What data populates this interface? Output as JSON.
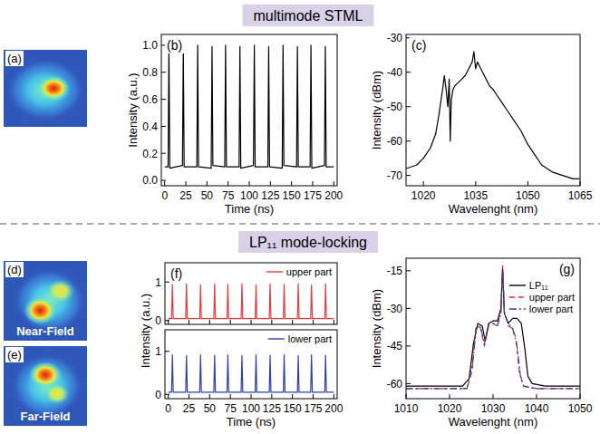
{
  "headers": [
    "multimode STML",
    "LP₁₁ mode-locking"
  ],
  "images": [
    {
      "label": "(a)"
    },
    {
      "label": "(d)",
      "caption": "Near-Field"
    },
    {
      "label": "(e)",
      "caption": "Far-Field"
    }
  ],
  "chart_data": [
    {
      "type": "line",
      "annotation": "(b)",
      "x_label": "Time (ns)",
      "y_label": "Intensity (a.u.)",
      "xlim": [
        -4,
        204
      ],
      "xticks": [
        0,
        25,
        50,
        75,
        100,
        125,
        150,
        175,
        200
      ],
      "ylim": [
        -0.04,
        1.08
      ],
      "yticks": [
        {
          "value": 0,
          "label": "0.0"
        },
        {
          "value": 0.2,
          "label": "0.2"
        },
        {
          "value": 0.4,
          "label": "0.4"
        },
        {
          "value": 0.6,
          "label": "0.6"
        },
        {
          "value": 0.8,
          "label": "0.8"
        },
        {
          "value": 1,
          "label": "1.0"
        }
      ],
      "series": [
        {
          "color": "#000000",
          "line_style": "solid",
          "x": [
            0,
            4,
            5,
            6,
            21,
            22,
            23,
            38,
            39,
            40,
            55,
            56,
            57,
            71,
            72,
            73,
            88,
            89,
            90,
            105,
            106,
            107,
            122,
            123,
            124,
            139,
            140,
            141,
            156,
            157,
            158,
            172,
            173,
            174,
            189,
            190,
            191,
            200
          ],
          "values": [
            0.1,
            0.1,
            1.0,
            0.09,
            0.11,
            0.99,
            0.1,
            0.1,
            1.0,
            0.1,
            0.09,
            0.99,
            0.11,
            0.1,
            1.0,
            0.1,
            0.1,
            0.99,
            0.09,
            0.11,
            1.0,
            0.1,
            0.1,
            0.99,
            0.1,
            0.09,
            1.0,
            0.11,
            0.1,
            0.99,
            0.1,
            0.1,
            1.0,
            0.09,
            0.11,
            0.99,
            0.1,
            0.1
          ]
        }
      ]
    },
    {
      "type": "line",
      "annotation": "(c)",
      "x_label": "Wavelenght (nm)",
      "y_label": "Intensity (dBm)",
      "xlim": [
        1015,
        1065
      ],
      "xticks": [
        1020,
        1035,
        1050,
        1065
      ],
      "ylim": [
        -73,
        -29
      ],
      "yticks": [
        -70,
        -60,
        -50,
        -40,
        -30
      ],
      "series": [
        {
          "color": "#000000",
          "line_style": "solid",
          "x": [
            1015,
            1018,
            1020,
            1022,
            1023.5,
            1024.5,
            1025.5,
            1026,
            1026.5,
            1027,
            1027.4,
            1027.7,
            1028,
            1028.5,
            1029,
            1030,
            1031,
            1032,
            1033,
            1034,
            1034.5,
            1035,
            1035.5,
            1036,
            1037,
            1038,
            1039,
            1040,
            1042,
            1044,
            1046,
            1048,
            1050,
            1052,
            1054,
            1057,
            1060,
            1063,
            1065
          ],
          "values": [
            -68,
            -67,
            -65,
            -62,
            -58,
            -52,
            -45,
            -41,
            -45,
            -50,
            -42,
            -60,
            -48,
            -45,
            -44,
            -43,
            -42,
            -41,
            -39,
            -37,
            -34,
            -39,
            -37,
            -38,
            -40,
            -42,
            -44,
            -45,
            -48,
            -51,
            -54,
            -57,
            -61,
            -64,
            -67,
            -69,
            -70,
            -71,
            -71
          ]
        }
      ]
    },
    {
      "type": "line",
      "annotation": "(f)",
      "tick_labels": "y",
      "legend": "upper right",
      "xlim": [
        -4,
        204
      ],
      "xticks": [
        0,
        25,
        50,
        75,
        100,
        125,
        150,
        175,
        200
      ],
      "ylim": [
        -0.1,
        1.5
      ],
      "yticks": [
        0,
        1
      ],
      "series": [
        {
          "name": "upper part",
          "color": "#e8393b",
          "line_style": "solid",
          "x": [
            0,
            4,
            5,
            6,
            21,
            22,
            23,
            38,
            39,
            40,
            55,
            56,
            57,
            71,
            72,
            73,
            88,
            89,
            90,
            105,
            106,
            107,
            122,
            123,
            124,
            139,
            140,
            141,
            156,
            157,
            158,
            172,
            173,
            174,
            189,
            190,
            191,
            200
          ],
          "values": [
            0.05,
            0.05,
            0.94,
            0.05,
            0.05,
            0.95,
            0.05,
            0.05,
            0.93,
            0.05,
            0.05,
            0.95,
            0.05,
            0.05,
            0.94,
            0.05,
            0.05,
            0.95,
            0.05,
            0.05,
            0.93,
            0.05,
            0.05,
            0.95,
            0.05,
            0.05,
            0.94,
            0.05,
            0.05,
            0.95,
            0.05,
            0.05,
            0.93,
            0.05,
            0.05,
            0.95,
            0.05,
            0.05
          ]
        }
      ]
    },
    {
      "type": "line",
      "x_label": "Time (ns)",
      "y_label": "Intensity (a.u.)",
      "legend": "upper right",
      "xlim": [
        -4,
        204
      ],
      "xticks": [
        0,
        25,
        50,
        75,
        100,
        125,
        150,
        175,
        200
      ],
      "ylim": [
        -0.1,
        1.5
      ],
      "yticks": [
        0,
        1
      ],
      "series": [
        {
          "name": "lower part",
          "color": "#2f3fa8",
          "line_style": "solid",
          "x": [
            0,
            4,
            5,
            6,
            21,
            22,
            23,
            38,
            39,
            40,
            55,
            56,
            57,
            71,
            72,
            73,
            88,
            89,
            90,
            105,
            106,
            107,
            122,
            123,
            124,
            139,
            140,
            141,
            156,
            157,
            158,
            172,
            173,
            174,
            189,
            190,
            191,
            200
          ],
          "values": [
            0.05,
            0.05,
            0.92,
            0.05,
            0.05,
            0.9,
            0.05,
            0.05,
            0.92,
            0.05,
            0.05,
            0.91,
            0.05,
            0.05,
            0.92,
            0.05,
            0.05,
            0.9,
            0.05,
            0.05,
            0.92,
            0.05,
            0.05,
            0.91,
            0.05,
            0.05,
            0.92,
            0.05,
            0.05,
            0.9,
            0.05,
            0.05,
            0.92,
            0.05,
            0.05,
            0.91,
            0.05,
            0.05
          ]
        }
      ]
    },
    {
      "type": "line",
      "annotation": "(g)",
      "x_label": "Wavelenght (nm)",
      "y_label": "Intensity (dBm)",
      "legend": "upper right",
      "xlim": [
        1010,
        1050
      ],
      "xticks": [
        1010,
        1020,
        1030,
        1040,
        1050
      ],
      "ylim": [
        -66,
        -10
      ],
      "yticks": [
        -60,
        -45,
        -30,
        -15
      ],
      "series": [
        {
          "name": "LP₁₁",
          "color": "#000000",
          "line_style": "solid",
          "x": [
            1010,
            1015,
            1020,
            1023,
            1024.5,
            1025.5,
            1026.5,
            1027.5,
            1028.2,
            1029,
            1030,
            1031,
            1031.8,
            1032.2,
            1032.6,
            1033.5,
            1034.5,
            1035.5,
            1036.5,
            1037.3,
            1038,
            1039,
            1042,
            1046,
            1050
          ],
          "values": [
            -61,
            -61,
            -61,
            -61,
            -58,
            -44,
            -36,
            -37,
            -43,
            -36,
            -35,
            -35,
            -30,
            -14,
            -32,
            -36,
            -34,
            -34,
            -36,
            -46,
            -57,
            -60,
            -61,
            -61,
            -61
          ]
        },
        {
          "name": "upper part",
          "color": "#e0282a",
          "line_style": "dashed",
          "x": [
            1010,
            1015,
            1020,
            1024,
            1025.2,
            1026,
            1027,
            1028,
            1029,
            1030,
            1031,
            1031.8,
            1032.2,
            1032.6,
            1033.5,
            1034.5,
            1035.3,
            1036,
            1037,
            1040,
            1045,
            1050
          ],
          "values": [
            -62,
            -62,
            -62,
            -62,
            -55,
            -38,
            -37,
            -45,
            -37,
            -36,
            -37,
            -31,
            -13,
            -31,
            -37,
            -38,
            -42,
            -55,
            -61,
            -62,
            -62,
            -62
          ]
        },
        {
          "name": "lower part",
          "color": "#2f3fa8",
          "line_style": "dashdot",
          "x": [
            1010,
            1015,
            1020,
            1024,
            1025.3,
            1026.2,
            1027.2,
            1028,
            1029,
            1030,
            1031,
            1031.8,
            1032.2,
            1032.6,
            1033.5,
            1034.5,
            1035.5,
            1036.3,
            1037,
            1040,
            1045,
            1050
          ],
          "values": [
            -62,
            -62,
            -62,
            -62,
            -52,
            -37,
            -38,
            -44,
            -36,
            -36,
            -37,
            -32,
            -15,
            -32,
            -36,
            -38,
            -45,
            -57,
            -61,
            -62,
            -62,
            -62
          ]
        }
      ]
    }
  ]
}
